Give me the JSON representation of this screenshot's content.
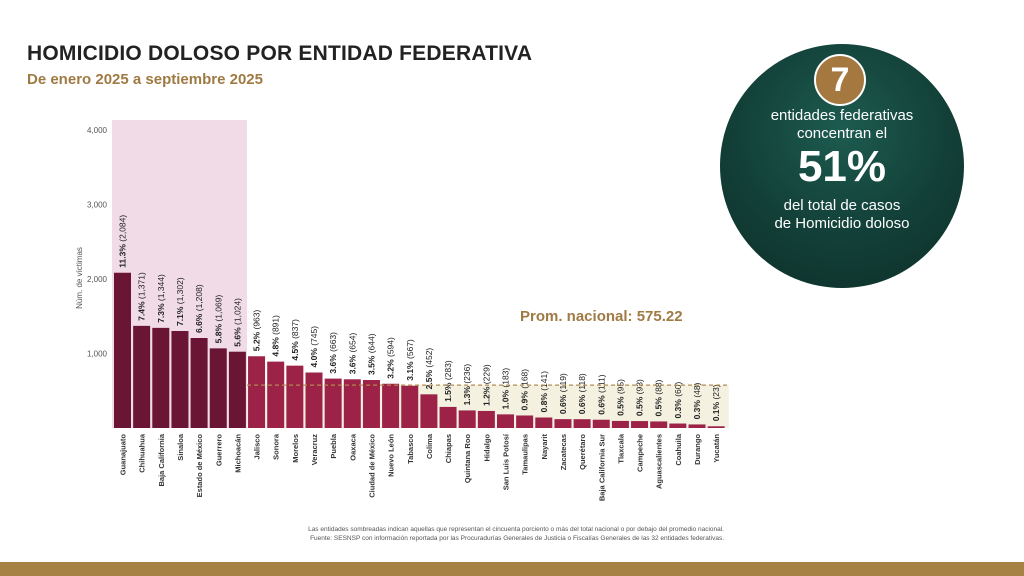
{
  "header": {
    "title": "HOMICIDIO DOLOSO POR ENTIDAD FEDERATIVA",
    "subtitle": "De enero 2025 a septiembre 2025"
  },
  "callout": {
    "number": "7",
    "line1a": "entidades federativas",
    "line1b": "concentran el",
    "big": "51%",
    "line3a": "del total de casos",
    "line3b": "de Homicidio doloso"
  },
  "footnote": {
    "line1": "Las entidades sombreadas indican aquellas que representan el cincuenta porciento o más del total nacional o por debajo del promedio nacional.",
    "line2": "Fuente: SESNSP con información reportada por las Procuradurías Generales de Justicia o Fiscalías Generales de las 32 entidades federativas."
  },
  "colors": {
    "dark_bar": "#6b1535",
    "light_bar": "#9c2248",
    "top_shade": "#f0dbe6",
    "avg_shade": "#f4f1e1",
    "avg_line": "#b48a4e",
    "avg_text": "#a07a43",
    "bottom_bar": "#a68245"
  },
  "chart_data": {
    "type": "bar",
    "ylabel": "Núm. de víctimas",
    "ylim": [
      0,
      4000
    ],
    "yticks": [
      "4,000",
      "3,000",
      "2,000",
      "1,000"
    ],
    "average": 575.22,
    "average_label": "Prom. nacional: 575.22",
    "categories": [
      "Guanajuato",
      "Chihuahua",
      "Baja California",
      "Sinaloa",
      "Estado de México",
      "Guerrero",
      "Michoacán",
      "Jalisco",
      "Sonora",
      "Morelos",
      "Veracruz",
      "Puebla",
      "Oaxaca",
      "Ciudad de México",
      "Nuevo León",
      "Tabasco",
      "Colima",
      "Chiapas",
      "Quintana Roo",
      "Hidalgo",
      "San Luis Potosí",
      "Tamaulipas",
      "Nayarit",
      "Zacatecas",
      "Querétaro",
      "Baja California Sur",
      "Tlaxcala",
      "Campeche",
      "Aguascalientes",
      "Coahuila",
      "Durango",
      "Yucatán"
    ],
    "values": [
      2084,
      1371,
      1344,
      1302,
      1208,
      1069,
      1024,
      963,
      891,
      837,
      745,
      663,
      654,
      644,
      594,
      567,
      452,
      283,
      236,
      229,
      183,
      168,
      141,
      119,
      118,
      111,
      95,
      93,
      88,
      60,
      48,
      23
    ],
    "percent_labels": [
      "11.3%",
      "7.4%",
      "7.3%",
      "7.1%",
      "6.6%",
      "5.8%",
      "5.6%",
      "5.2%",
      "4.8%",
      "4.5%",
      "4.0%",
      "3.6%",
      "3.6%",
      "3.5%",
      "3.2%",
      "3.1%",
      "2.5%",
      "1.5%",
      "1.3%",
      "1.2%",
      "1.0%",
      "0.9%",
      "0.8%",
      "0.6%",
      "0.6%",
      "0.6%",
      "0.5%",
      "0.5%",
      "0.5%",
      "0.3%",
      "0.3%",
      "0.1%"
    ],
    "value_labels": [
      "(2,084)",
      "(1,371)",
      "(1,344)",
      "(1,302)",
      "(1,208)",
      "(1,069)",
      "(1,024)",
      "(963)",
      "(891)",
      "(837)",
      "(745)",
      "(663)",
      "(654)",
      "(644)",
      "(594)",
      "(567)",
      "(452)",
      "(283)",
      "(236)",
      "(229)",
      "(183)",
      "(168)",
      "(141)",
      "(119)",
      "(118)",
      "(111)",
      "(95)",
      "(93)",
      "(88)",
      "(60)",
      "(48)",
      "(23)"
    ],
    "highlighted_count": 7
  }
}
